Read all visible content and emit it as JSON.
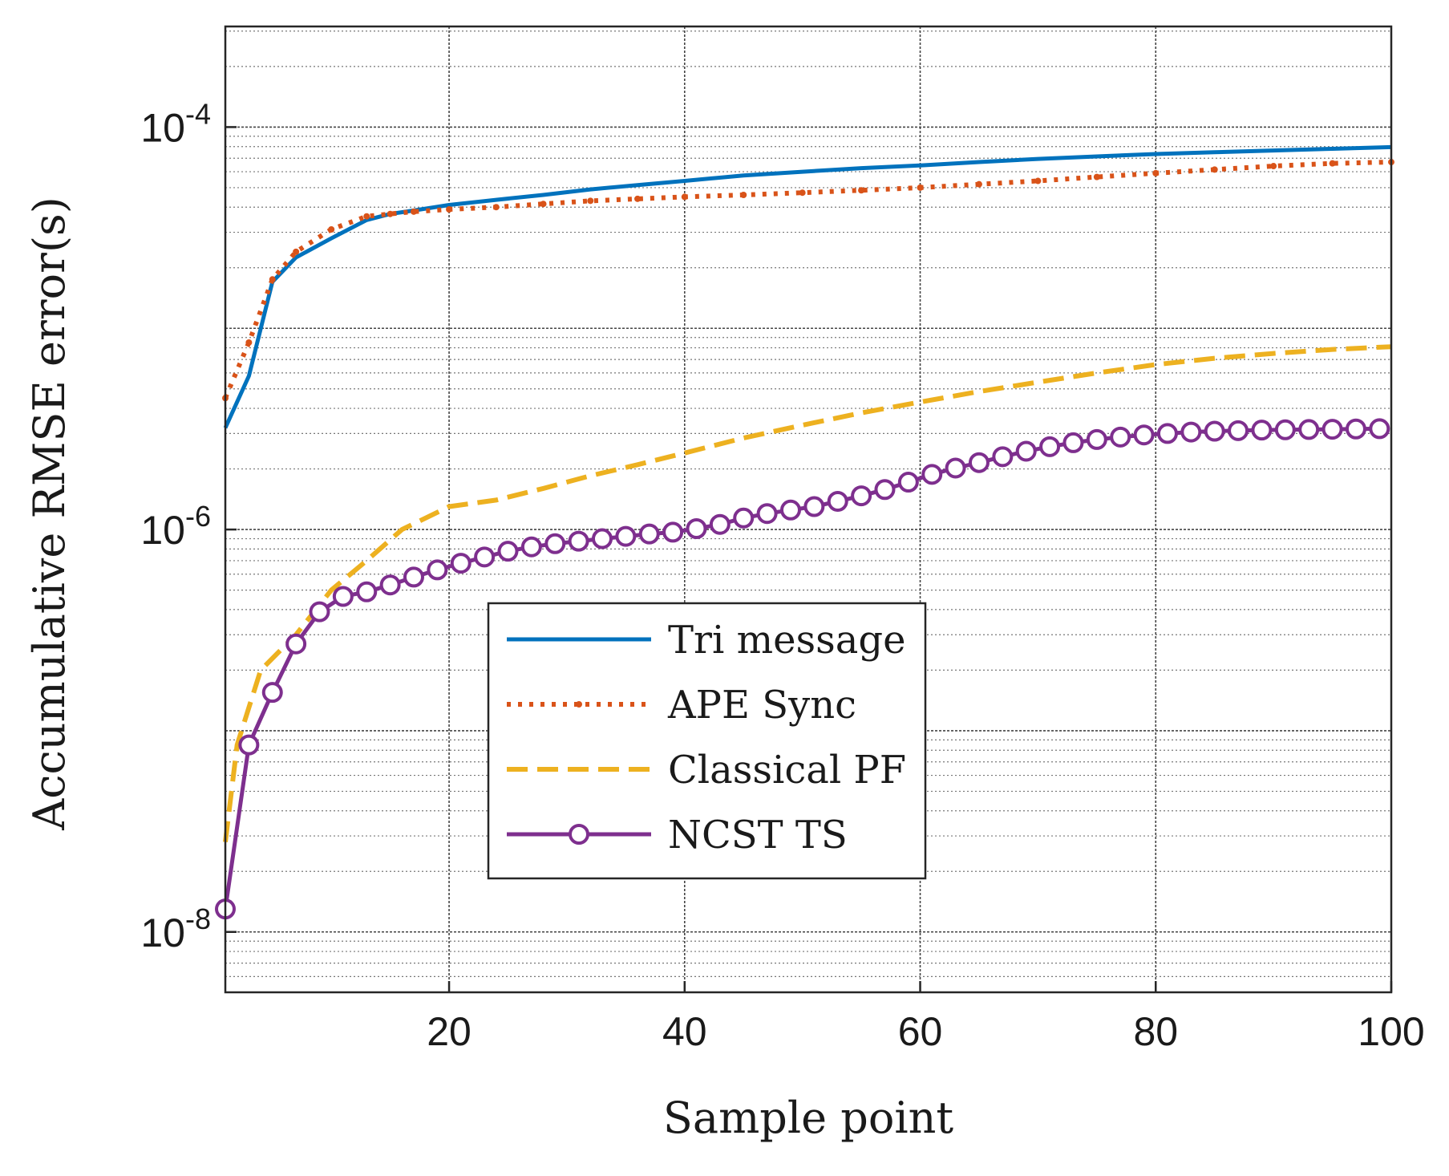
{
  "chart_data": {
    "type": "line",
    "xlabel": "Sample point",
    "ylabel": "Accumulative RMSE error(s)",
    "xlim": [
      1,
      100
    ],
    "ylim_exponent": [
      -8.3,
      -3.5
    ],
    "yscale": "log",
    "grid": true,
    "minor_grid": true,
    "legend_position": "center-bottom",
    "x_ticks": [
      {
        "value": 20,
        "label": "20"
      },
      {
        "value": 40,
        "label": "40"
      },
      {
        "value": 60,
        "label": "60"
      },
      {
        "value": 80,
        "label": "80"
      },
      {
        "value": 100,
        "label": "100"
      }
    ],
    "y_ticks": [
      {
        "exponent": -4,
        "base": "10",
        "exp_label": "-4"
      },
      {
        "exponent": -6,
        "base": "10",
        "exp_label": "-6"
      },
      {
        "exponent": -8,
        "base": "10",
        "exp_label": "-8"
      }
    ],
    "series": [
      {
        "name": "Tri message",
        "color": "#0072BD",
        "style": "solid",
        "marker": "none",
        "x": [
          1,
          3,
          5,
          7,
          10,
          13,
          15,
          17,
          20,
          24,
          28,
          32,
          36,
          40,
          45,
          50,
          55,
          60,
          65,
          70,
          75,
          80,
          85,
          90,
          95,
          100
        ],
        "y": [
          3.2e-06,
          5.8e-06,
          1.7e-05,
          2.25e-05,
          2.8e-05,
          3.45e-05,
          3.7e-05,
          3.85e-05,
          4.1e-05,
          4.35e-05,
          4.6e-05,
          4.9e-05,
          5.15e-05,
          5.4e-05,
          5.75e-05,
          6e-05,
          6.25e-05,
          6.45e-05,
          6.7e-05,
          6.95e-05,
          7.15e-05,
          7.35e-05,
          7.5e-05,
          7.65e-05,
          7.8e-05,
          7.95e-05
        ]
      },
      {
        "name": "APE Sync",
        "color": "#D95319",
        "style": "dotted",
        "marker": "dot",
        "x": [
          1,
          3,
          5,
          7,
          10,
          13,
          15,
          17,
          20,
          24,
          28,
          32,
          36,
          40,
          45,
          50,
          55,
          60,
          65,
          70,
          75,
          80,
          85,
          90,
          95,
          100
        ],
        "y": [
          4.5e-06,
          8.5e-06,
          1.75e-05,
          2.4e-05,
          3.1e-05,
          3.6e-05,
          3.7e-05,
          3.8e-05,
          3.9e-05,
          4e-05,
          4.15e-05,
          4.3e-05,
          4.4e-05,
          4.5e-05,
          4.6e-05,
          4.72e-05,
          4.85e-05,
          5e-05,
          5.2e-05,
          5.4e-05,
          5.65e-05,
          5.9e-05,
          6.15e-05,
          6.4e-05,
          6.6e-05,
          6.7e-05
        ]
      },
      {
        "name": "Classical PF",
        "color": "#EDB120",
        "style": "dashed",
        "marker": "none",
        "x": [
          1,
          2,
          4,
          7,
          10,
          13,
          16,
          20,
          24,
          28,
          32,
          36,
          40,
          45,
          50,
          55,
          60,
          65,
          70,
          75,
          80,
          85,
          90,
          95,
          100
        ],
        "y": [
          2.8e-08,
          8.5e-08,
          2e-07,
          3e-07,
          5e-07,
          7e-07,
          1e-06,
          1.3e-06,
          1.4e-06,
          1.6e-06,
          1.85e-06,
          2.1e-06,
          2.4e-06,
          2.85e-06,
          3.3e-06,
          3.8e-06,
          4.3e-06,
          4.85e-06,
          5.4e-06,
          6e-06,
          6.6e-06,
          7.1e-06,
          7.5e-06,
          7.85e-06,
          8.1e-06
        ]
      },
      {
        "name": "NCST TS",
        "color": "#7E2F8E",
        "style": "solid",
        "marker": "circle",
        "x": [
          1,
          3,
          5,
          7,
          9,
          11,
          13,
          15,
          17,
          19,
          21,
          23,
          25,
          27,
          29,
          31,
          33,
          35,
          37,
          39,
          41,
          43,
          45,
          47,
          49,
          51,
          53,
          55,
          57,
          59,
          61,
          63,
          65,
          67,
          69,
          71,
          73,
          75,
          77,
          79,
          81,
          83,
          85,
          87,
          89,
          91,
          93,
          95,
          97,
          99
        ],
        "y": [
          1.3e-08,
          8.5e-08,
          1.55e-07,
          2.7e-07,
          3.9e-07,
          4.65e-07,
          4.9e-07,
          5.3e-07,
          5.8e-07,
          6.3e-07,
          6.8e-07,
          7.3e-07,
          7.8e-07,
          8.2e-07,
          8.5e-07,
          8.75e-07,
          9e-07,
          9.25e-07,
          9.5e-07,
          9.7e-07,
          1.01e-06,
          1.06e-06,
          1.14e-06,
          1.2e-06,
          1.25e-06,
          1.3e-06,
          1.38e-06,
          1.47e-06,
          1.58e-06,
          1.72e-06,
          1.88e-06,
          2.02e-06,
          2.15e-06,
          2.3e-06,
          2.45e-06,
          2.58e-06,
          2.7e-06,
          2.8e-06,
          2.88e-06,
          2.95e-06,
          3e-06,
          3.05e-06,
          3.08e-06,
          3.1e-06,
          3.12e-06,
          3.13e-06,
          3.14e-06,
          3.15e-06,
          3.16e-06,
          3.17e-06
        ]
      }
    ]
  }
}
